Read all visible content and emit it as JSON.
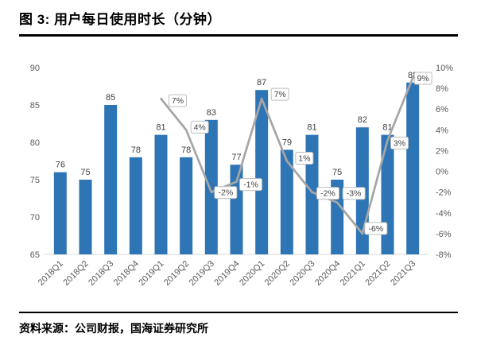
{
  "header": {
    "title": "图 3:  用户每日使用时长（分钟）"
  },
  "footer": {
    "source": "资料来源：公司财报，国海证券研究所"
  },
  "chart_data": {
    "type": "bar",
    "title": "用户每日使用时长（分钟）",
    "categories": [
      "2018Q1",
      "2018Q2",
      "2018Q3",
      "2018Q4",
      "2019Q1",
      "2019Q2",
      "2019Q3",
      "2019Q4",
      "2020Q1",
      "2020Q2",
      "2020Q3",
      "2020Q4",
      "2021Q1",
      "2021Q2",
      "2021Q3"
    ],
    "series": [
      {
        "type": "bar",
        "axis": "left",
        "color": "#2E75B6",
        "values": [
          76,
          75,
          85,
          78,
          81,
          78,
          83,
          77,
          87,
          79,
          81,
          75,
          82,
          81,
          88
        ]
      },
      {
        "type": "line",
        "axis": "right",
        "color": "#A6A6A6",
        "label_suffix": "%",
        "values": [
          null,
          null,
          null,
          null,
          7,
          4,
          -2,
          -1,
          7,
          1,
          -2,
          -3,
          -6,
          3,
          9
        ]
      }
    ],
    "left_axis": {
      "min": 65,
      "max": 90,
      "ticks": [
        65,
        70,
        75,
        80,
        85,
        90
      ]
    },
    "right_axis": {
      "min": -8,
      "max": 10,
      "ticks": [
        -8,
        -6,
        -4,
        -2,
        0,
        2,
        4,
        6,
        8,
        10
      ],
      "suffix": "%"
    },
    "grid": false,
    "legend": "none"
  }
}
